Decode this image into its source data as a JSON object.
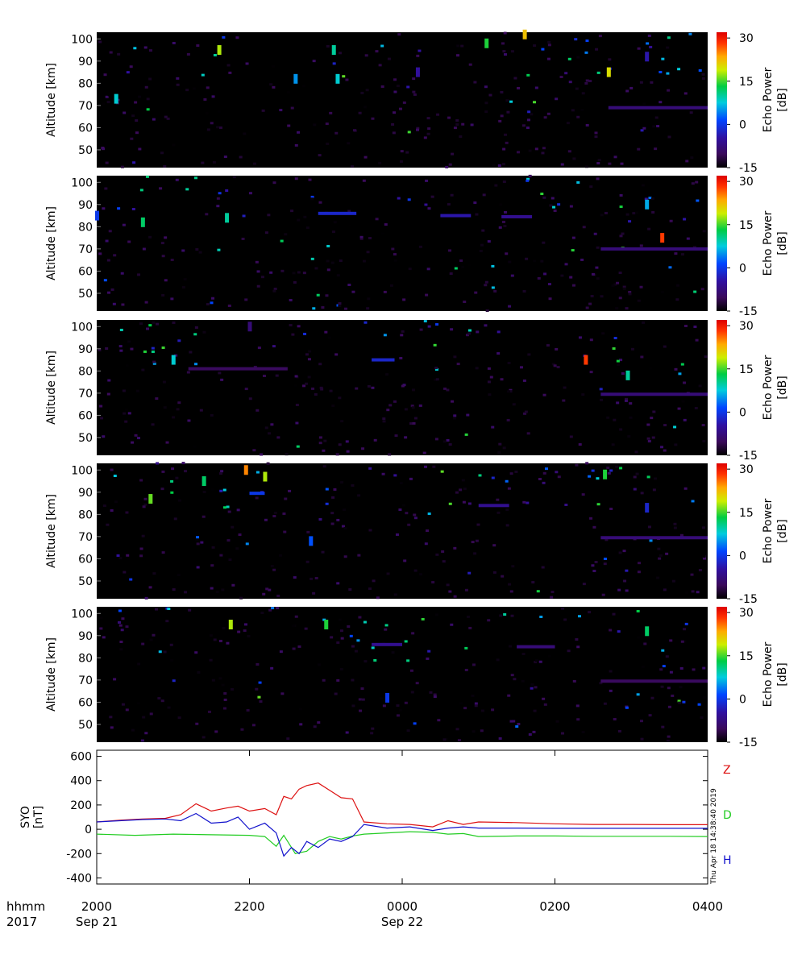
{
  "colors": {
    "Z": "#dd1111",
    "D": "#22cc22",
    "H": "#1111cc",
    "panel_bg": "#000000"
  },
  "timestamp": "Thu Apr 18 14:38:40 2019",
  "time_axis": {
    "row1_label": "hhmm",
    "row2_label": "2017",
    "ticks": [
      {
        "time": "2000",
        "date": "Sep 21",
        "hours": 0
      },
      {
        "time": "2200",
        "date": "",
        "hours": 2
      },
      {
        "time": "0000",
        "date": "Sep 22",
        "hours": 4
      },
      {
        "time": "0200",
        "date": "",
        "hours": 6
      },
      {
        "time": "0400",
        "date": "",
        "hours": 8
      }
    ],
    "range_hours": [
      0,
      8
    ]
  },
  "colorbar": {
    "label_line1": "Echo Power",
    "label_line2": "[dB]",
    "ticks": [
      "30",
      "15",
      "0",
      "-15"
    ],
    "range": [
      -15,
      32
    ]
  },
  "chart_data": [
    {
      "type": "heatmap",
      "panel": 1,
      "ylabel": "Altitude [km]",
      "yticks": [
        "100",
        "90",
        "80",
        "70",
        "60",
        "50"
      ],
      "ylim": [
        42,
        103
      ],
      "echo_layers": [
        {
          "altitude_km": 69,
          "start_h": 6.7,
          "end_h": 8.0,
          "power_db": -8
        }
      ],
      "features": [
        {
          "t_h": 0.25,
          "alt_km": 73,
          "power_db": 8
        },
        {
          "t_h": 1.6,
          "alt_km": 95,
          "power_db": 18
        },
        {
          "t_h": 2.6,
          "alt_km": 82,
          "power_db": 5
        },
        {
          "t_h": 3.1,
          "alt_km": 95,
          "power_db": 10
        },
        {
          "t_h": 3.15,
          "alt_km": 82,
          "power_db": 8
        },
        {
          "t_h": 4.2,
          "alt_km": 85,
          "power_db": -5
        },
        {
          "t_h": 5.1,
          "alt_km": 98,
          "power_db": 14
        },
        {
          "t_h": 5.6,
          "alt_km": 102,
          "power_db": 22
        },
        {
          "t_h": 6.7,
          "alt_km": 85,
          "power_db": 20
        },
        {
          "t_h": 7.2,
          "alt_km": 92,
          "power_db": -4
        }
      ]
    },
    {
      "type": "heatmap",
      "panel": 2,
      "ylabel": "Altitude [km]",
      "yticks": [
        "100",
        "90",
        "80",
        "70",
        "60",
        "50"
      ],
      "ylim": [
        42,
        103
      ],
      "echo_layers": [
        {
          "altitude_km": 86,
          "start_h": 2.9,
          "end_h": 3.4,
          "power_db": -2
        },
        {
          "altitude_km": 85,
          "start_h": 4.5,
          "end_h": 4.9,
          "power_db": -4
        },
        {
          "altitude_km": 84.5,
          "start_h": 5.3,
          "end_h": 5.7,
          "power_db": -6
        },
        {
          "altitude_km": 70,
          "start_h": 6.6,
          "end_h": 8.0,
          "power_db": -8
        }
      ],
      "features": [
        {
          "t_h": 0.0,
          "alt_km": 85,
          "power_db": 0
        },
        {
          "t_h": 0.6,
          "alt_km": 82,
          "power_db": 12
        },
        {
          "t_h": 1.7,
          "alt_km": 84,
          "power_db": 10
        },
        {
          "t_h": 7.4,
          "alt_km": 75,
          "power_db": 28
        },
        {
          "t_h": 7.2,
          "alt_km": 90,
          "power_db": 6
        }
      ]
    },
    {
      "type": "heatmap",
      "panel": 3,
      "ylabel": "Altitude [km]",
      "yticks": [
        "100",
        "90",
        "80",
        "70",
        "60",
        "50"
      ],
      "ylim": [
        42,
        103
      ],
      "echo_layers": [
        {
          "altitude_km": 81,
          "start_h": 1.2,
          "end_h": 2.5,
          "power_db": -10
        },
        {
          "altitude_km": 85,
          "start_h": 3.6,
          "end_h": 3.9,
          "power_db": -2
        },
        {
          "altitude_km": 69.5,
          "start_h": 6.6,
          "end_h": 8.0,
          "power_db": -8
        }
      ],
      "features": [
        {
          "t_h": 1.0,
          "alt_km": 85,
          "power_db": 8
        },
        {
          "t_h": 6.4,
          "alt_km": 85,
          "power_db": 28
        },
        {
          "t_h": 6.95,
          "alt_km": 78,
          "power_db": 10
        },
        {
          "t_h": 2.0,
          "alt_km": 100,
          "power_db": -8
        }
      ]
    },
    {
      "type": "heatmap",
      "panel": 4,
      "ylabel": "Altitude [km]",
      "yticks": [
        "100",
        "90",
        "80",
        "70",
        "60",
        "50"
      ],
      "ylim": [
        42,
        103
      ],
      "echo_layers": [
        {
          "altitude_km": 89.5,
          "start_h": 2.0,
          "end_h": 2.2,
          "power_db": 0
        },
        {
          "altitude_km": 84,
          "start_h": 5.0,
          "end_h": 5.4,
          "power_db": -6
        },
        {
          "altitude_km": 69.5,
          "start_h": 6.6,
          "end_h": 8.0,
          "power_db": -8
        }
      ],
      "features": [
        {
          "t_h": 0.7,
          "alt_km": 87,
          "power_db": 16
        },
        {
          "t_h": 1.4,
          "alt_km": 95,
          "power_db": 12
        },
        {
          "t_h": 1.95,
          "alt_km": 100,
          "power_db": 25
        },
        {
          "t_h": 2.2,
          "alt_km": 97,
          "power_db": 18
        },
        {
          "t_h": 2.8,
          "alt_km": 68,
          "power_db": 2
        },
        {
          "t_h": 6.65,
          "alt_km": 98,
          "power_db": 14
        },
        {
          "t_h": 7.2,
          "alt_km": 83,
          "power_db": -2
        }
      ]
    },
    {
      "type": "heatmap",
      "panel": 5,
      "ylabel": "Altitude [km]",
      "yticks": [
        "100",
        "90",
        "80",
        "70",
        "60",
        "50"
      ],
      "ylim": [
        42,
        103
      ],
      "echo_layers": [
        {
          "altitude_km": 86,
          "start_h": 3.6,
          "end_h": 4.0,
          "power_db": -6
        },
        {
          "altitude_km": 85,
          "start_h": 5.5,
          "end_h": 6.0,
          "power_db": -8
        },
        {
          "altitude_km": 69.5,
          "start_h": 6.6,
          "end_h": 8.0,
          "power_db": -10
        }
      ],
      "features": [
        {
          "t_h": 1.75,
          "alt_km": 95,
          "power_db": 18
        },
        {
          "t_h": 3.0,
          "alt_km": 95,
          "power_db": 14
        },
        {
          "t_h": 3.8,
          "alt_km": 62,
          "power_db": 0
        },
        {
          "t_h": 7.2,
          "alt_km": 92,
          "power_db": 12
        }
      ]
    },
    {
      "type": "line",
      "panel": 6,
      "ylabel_line1": "SYO",
      "ylabel_line2": "[nT]",
      "yticks": [
        "600",
        "400",
        "200",
        "0",
        "-200",
        "-400"
      ],
      "ylim": [
        -450,
        650
      ],
      "series": [
        {
          "name": "Z",
          "color": "#dd1111",
          "x_hours": [
            0,
            0.3,
            0.6,
            0.9,
            1.1,
            1.3,
            1.5,
            1.7,
            1.85,
            2.0,
            2.2,
            2.35,
            2.45,
            2.55,
            2.65,
            2.75,
            2.9,
            3.05,
            3.2,
            3.35,
            3.5,
            3.8,
            4.1,
            4.4,
            4.6,
            4.8,
            5.0,
            5.5,
            6.0,
            6.5,
            7.0,
            7.5,
            8.0
          ],
          "y": [
            60,
            75,
            85,
            90,
            120,
            210,
            150,
            175,
            190,
            150,
            170,
            120,
            270,
            250,
            330,
            360,
            380,
            320,
            260,
            250,
            60,
            45,
            40,
            20,
            70,
            40,
            60,
            55,
            45,
            40,
            40,
            38,
            38
          ]
        },
        {
          "name": "D",
          "color": "#22cc22",
          "x_hours": [
            0,
            0.5,
            1.0,
            1.5,
            2.0,
            2.2,
            2.35,
            2.45,
            2.6,
            2.75,
            2.9,
            3.05,
            3.2,
            3.35,
            3.5,
            3.8,
            4.1,
            4.4,
            4.6,
            4.8,
            5.0,
            5.5,
            6.0,
            6.5,
            7.0,
            7.5,
            8.0
          ],
          "y": [
            -40,
            -50,
            -40,
            -45,
            -50,
            -60,
            -140,
            -50,
            -200,
            -180,
            -100,
            -60,
            -80,
            -55,
            -40,
            -30,
            -20,
            -25,
            -40,
            -35,
            -60,
            -55,
            -55,
            -58,
            -58,
            -58,
            -60
          ]
        },
        {
          "name": "H",
          "color": "#1111cc",
          "x_hours": [
            0,
            0.3,
            0.6,
            0.9,
            1.1,
            1.3,
            1.5,
            1.7,
            1.85,
            2.0,
            2.2,
            2.35,
            2.45,
            2.55,
            2.65,
            2.75,
            2.9,
            3.05,
            3.2,
            3.35,
            3.5,
            3.8,
            4.1,
            4.4,
            4.6,
            4.8,
            5.0,
            5.5,
            6.0,
            6.5,
            7.0,
            7.5,
            8.0
          ],
          "y": [
            60,
            70,
            80,
            85,
            70,
            130,
            50,
            60,
            100,
            0,
            50,
            -30,
            -220,
            -150,
            -200,
            -100,
            -150,
            -80,
            -100,
            -60,
            40,
            10,
            20,
            -10,
            10,
            20,
            10,
            10,
            8,
            8,
            8,
            8,
            8
          ]
        }
      ]
    }
  ]
}
